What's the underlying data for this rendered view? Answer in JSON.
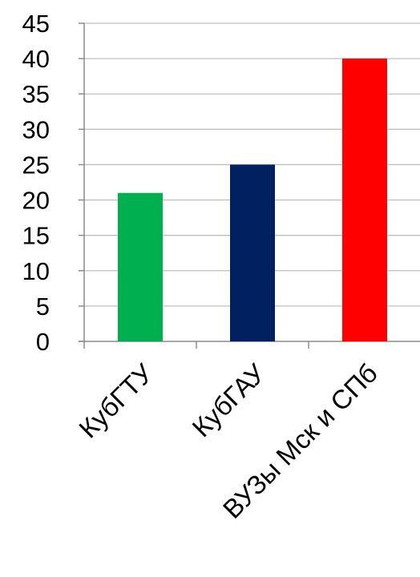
{
  "chart_data": {
    "type": "bar",
    "categories": [
      "КубГТУ",
      "КубГАУ",
      "ВУЗы Мск и СПб"
    ],
    "values": [
      21,
      25,
      40
    ],
    "colors": [
      "#00b050",
      "#002060",
      "#ff0000"
    ],
    "ylim": [
      0,
      45
    ],
    "yticks": [
      0,
      5,
      10,
      15,
      20,
      25,
      30,
      35,
      40,
      45
    ],
    "grid": true,
    "title": "",
    "xlabel": "",
    "ylabel": ""
  }
}
